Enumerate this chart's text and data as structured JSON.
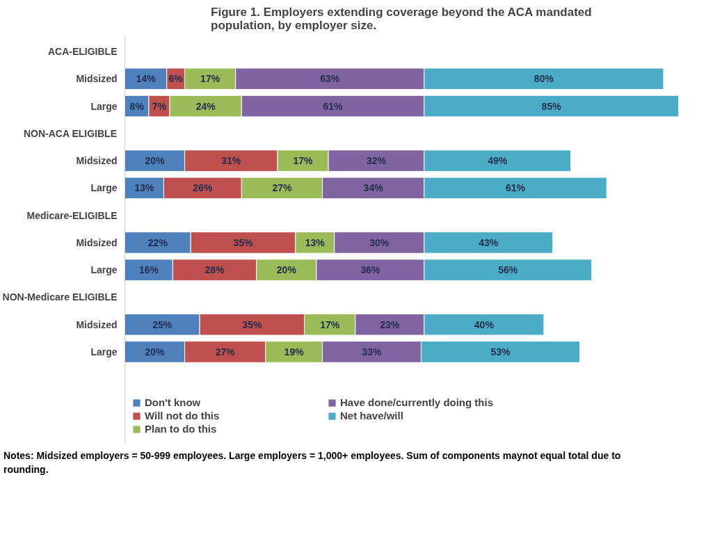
{
  "chart_data": {
    "type": "bar",
    "orientation": "horizontal",
    "stacked": true,
    "title": "Figure 1. Employers extending coverage beyond the ACA mandated\npopulation, by employer size.",
    "categories": [
      "ACA-ELIGIBLE",
      "Midsized",
      "Large",
      "NON-ACA ELIGIBLE",
      "Midsized",
      "Large",
      "Medicare-ELIGIBLE",
      "Midsized",
      "Large",
      "NON-Medicare ELIGIBLE",
      "Midsized",
      "Large"
    ],
    "series": [
      {
        "name": "Don't know",
        "color": "#4f81bd",
        "values": [
          null,
          14,
          8,
          null,
          20,
          13,
          null,
          22,
          16,
          null,
          25,
          20
        ],
        "value_labels": [
          null,
          "14%",
          "8%",
          null,
          "20%",
          "13%",
          null,
          "22%",
          "16%",
          null,
          "25%",
          "20%"
        ]
      },
      {
        "name": "Will not do this",
        "color": "#c0504d",
        "values": [
          null,
          6,
          7,
          null,
          31,
          26,
          null,
          35,
          28,
          null,
          35,
          27
        ],
        "value_labels": [
          null,
          "6%",
          "7%",
          null,
          "31%",
          "26%",
          null,
          "35%",
          "28%",
          null,
          "35%",
          "27%"
        ]
      },
      {
        "name": "Plan to do this",
        "color": "#9bbb59",
        "values": [
          null,
          17,
          24,
          null,
          17,
          27,
          null,
          13,
          20,
          null,
          17,
          19
        ],
        "value_labels": [
          null,
          "17%",
          "24%",
          null,
          "17%",
          "27%",
          null,
          "13%",
          "20%",
          null,
          "17%",
          "19%"
        ]
      },
      {
        "name": "Have done/currently doing this",
        "color": "#8064a2",
        "values": [
          null,
          63,
          61,
          null,
          32,
          34,
          null,
          30,
          36,
          null,
          23,
          33
        ],
        "value_labels": [
          null,
          "63%",
          "61%",
          null,
          "32%",
          "34%",
          null,
          "30%",
          "36%",
          null,
          "23%",
          "33%"
        ]
      },
      {
        "name": "Net have/will",
        "color": "#4bacc6",
        "values": [
          null,
          80,
          85,
          null,
          49,
          61,
          null,
          43,
          56,
          null,
          40,
          53
        ],
        "value_labels": [
          null,
          "80%",
          "85%",
          null,
          "49%",
          "61%",
          null,
          "43%",
          "56%",
          null,
          "40%",
          "53%"
        ]
      }
    ],
    "xlim": [
      0,
      185
    ],
    "tick_labels": "y",
    "grid": false,
    "legend": "bottom",
    "annotations": [
      "Notes: Midsized employers = 50-999 employees. Large employers = 1,000+ employees. Sum of components maynot equal total due to rounding."
    ]
  }
}
